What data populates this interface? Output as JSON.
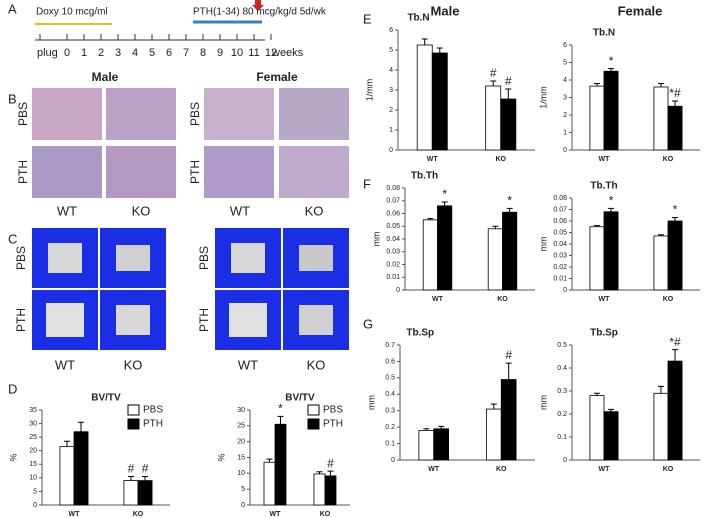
{
  "panel_labels": [
    "A",
    "B",
    "C",
    "D",
    "E",
    "F",
    "G"
  ],
  "timeline": {
    "doxy": "Doxy 10 mcg/ml",
    "pth": "PTH(1-34) 80 mcg/kg/d 5d/wk",
    "ticks": [
      "plug",
      "0",
      "1",
      "2",
      "3",
      "4",
      "5",
      "6",
      "7",
      "8",
      "9",
      "10",
      "11",
      "12"
    ],
    "unit": "weeks"
  },
  "column_headers": [
    "Male",
    "Female"
  ],
  "histology": {
    "groups": [
      "Male",
      "Female"
    ],
    "rows": [
      "PBS",
      "PTH"
    ],
    "cols": [
      "WT",
      "KO"
    ]
  },
  "microct": {
    "rows": [
      "PBS",
      "PTH"
    ],
    "cols": [
      "WT",
      "KO"
    ]
  },
  "chart_data": [
    {
      "type": "bar",
      "title": "BV/TV",
      "ylabel": "%",
      "categories": [
        "WT",
        "KO"
      ],
      "legend": "upper-right",
      "ylim": [
        0,
        35
      ],
      "yticks": [
        0,
        5,
        10,
        15,
        20,
        25,
        30,
        35
      ],
      "series": [
        {
          "name": "PBS",
          "color": "#ffffff",
          "values": [
            21.5,
            9
          ],
          "errors": [
            2,
            1.5
          ],
          "annotations": [
            null,
            "#"
          ]
        },
        {
          "name": "PTH",
          "color": "#000000",
          "values": [
            27,
            9
          ],
          "errors": [
            3.5,
            1.5
          ],
          "annotations": [
            null,
            "#"
          ]
        }
      ]
    },
    {
      "type": "bar",
      "title": "BV/TV",
      "ylabel": "%",
      "categories": [
        "WT",
        "KO"
      ],
      "legend": "upper-right",
      "ylim": [
        0,
        30
      ],
      "yticks": [
        0,
        5,
        10,
        15,
        20,
        25,
        30
      ],
      "series": [
        {
          "name": "PBS",
          "color": "#ffffff",
          "values": [
            13.5,
            9.8
          ],
          "errors": [
            1,
            0.7
          ],
          "annotations": [
            null,
            null
          ]
        },
        {
          "name": "PTH",
          "color": "#000000",
          "values": [
            25.5,
            9.2
          ],
          "errors": [
            2.5,
            1.5
          ],
          "annotations": [
            "*",
            "#"
          ]
        }
      ]
    },
    {
      "type": "bar",
      "title": "Tb.N",
      "ylabel": "1/mm",
      "categories": [
        "WT",
        "KO"
      ],
      "ylim": [
        0,
        6
      ],
      "yticks": [
        0,
        1,
        2,
        3,
        4,
        5,
        6
      ],
      "series": [
        {
          "name": "PBS",
          "color": "#ffffff",
          "values": [
            5.25,
            3.2
          ],
          "errors": [
            0.3,
            0.25
          ],
          "annotations": [
            null,
            "#"
          ]
        },
        {
          "name": "PTH",
          "color": "#000000",
          "values": [
            4.85,
            2.55
          ],
          "errors": [
            0.25,
            0.5
          ],
          "annotations": [
            null,
            "#"
          ]
        }
      ]
    },
    {
      "type": "bar",
      "title": "Tb.N",
      "ylabel": "1/mm",
      "categories": [
        "WT",
        "KO"
      ],
      "ylim": [
        0,
        6
      ],
      "yticks": [
        0,
        1,
        2,
        3,
        4,
        5,
        6
      ],
      "series": [
        {
          "name": "PBS",
          "color": "#ffffff",
          "values": [
            3.65,
            3.6
          ],
          "errors": [
            0.15,
            0.2
          ],
          "annotations": [
            null,
            null
          ]
        },
        {
          "name": "PTH",
          "color": "#000000",
          "values": [
            4.5,
            2.5
          ],
          "errors": [
            0.15,
            0.3
          ],
          "annotations": [
            "*",
            "*#"
          ]
        }
      ]
    },
    {
      "type": "bar",
      "title": "Tb.Th",
      "ylabel": "mm",
      "categories": [
        "WT",
        "KO"
      ],
      "ylim": [
        0,
        0.08
      ],
      "yticks": [
        0,
        0.01,
        0.02,
        0.03,
        0.04,
        0.05,
        0.06,
        0.07,
        0.08
      ],
      "series": [
        {
          "name": "PBS",
          "color": "#ffffff",
          "values": [
            0.055,
            0.048
          ],
          "errors": [
            0.001,
            0.002
          ],
          "annotations": [
            null,
            null
          ]
        },
        {
          "name": "PTH",
          "color": "#000000",
          "values": [
            0.066,
            0.061
          ],
          "errors": [
            0.003,
            0.003
          ],
          "annotations": [
            "*",
            "*"
          ]
        }
      ]
    },
    {
      "type": "bar",
      "title": "Tb.Th",
      "ylabel": "mm",
      "categories": [
        "WT",
        "KO"
      ],
      "ylim": [
        0,
        0.08
      ],
      "yticks": [
        0,
        0.01,
        0.02,
        0.03,
        0.04,
        0.05,
        0.06,
        0.07,
        0.08
      ],
      "series": [
        {
          "name": "PBS",
          "color": "#ffffff",
          "values": [
            0.055,
            0.047
          ],
          "errors": [
            0.001,
            0.001
          ],
          "annotations": [
            null,
            null
          ]
        },
        {
          "name": "PTH",
          "color": "#000000",
          "values": [
            0.068,
            0.06
          ],
          "errors": [
            0.003,
            0.003
          ],
          "annotations": [
            "*",
            "*"
          ]
        }
      ]
    },
    {
      "type": "bar",
      "title": "Tb.Sp",
      "ylabel": "mm",
      "categories": [
        "WT",
        "KO"
      ],
      "ylim": [
        0,
        0.7
      ],
      "yticks": [
        0,
        0.1,
        0.2,
        0.3,
        0.4,
        0.5,
        0.6,
        0.7
      ],
      "series": [
        {
          "name": "PBS",
          "color": "#ffffff",
          "values": [
            0.18,
            0.31
          ],
          "errors": [
            0.01,
            0.03
          ],
          "annotations": [
            null,
            null
          ]
        },
        {
          "name": "PTH",
          "color": "#000000",
          "values": [
            0.19,
            0.49
          ],
          "errors": [
            0.015,
            0.1
          ],
          "annotations": [
            null,
            "#"
          ]
        }
      ]
    },
    {
      "type": "bar",
      "title": "Tb.Sp",
      "ylabel": "mm",
      "categories": [
        "WT",
        "KO"
      ],
      "ylim": [
        0,
        0.5
      ],
      "yticks": [
        0,
        0.1,
        0.2,
        0.3,
        0.4,
        0.5
      ],
      "series": [
        {
          "name": "PBS",
          "color": "#ffffff",
          "values": [
            0.28,
            0.29
          ],
          "errors": [
            0.01,
            0.03
          ],
          "annotations": [
            null,
            null
          ]
        },
        {
          "name": "PTH",
          "color": "#000000",
          "values": [
            0.21,
            0.43
          ],
          "errors": [
            0.01,
            0.05
          ],
          "annotations": [
            null,
            "*#"
          ]
        }
      ]
    }
  ]
}
